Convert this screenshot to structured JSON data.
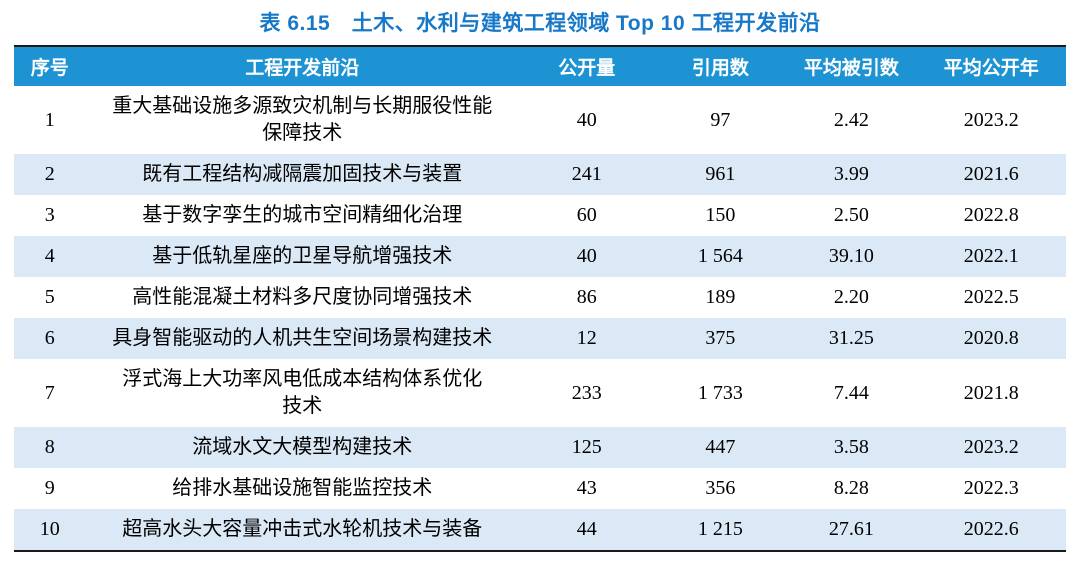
{
  "title": "表 6.15　土木、水利与建筑工程领域 Top 10 工程开发前沿",
  "colors": {
    "header_bg": "#1e93d3",
    "row_alt_bg": "#dbe9f6",
    "title_color": "#1878c8",
    "rule_color": "#1a1a1a"
  },
  "table": {
    "columns": [
      "序号",
      "工程开发前沿",
      "公开量",
      "引用数",
      "平均被引数",
      "平均公开年"
    ],
    "rows": [
      {
        "no": "1",
        "frontier": "重大基础设施多源致灾机制与长期服役性能\n保障技术",
        "publications": "40",
        "citations": "97",
        "avg_cited": "2.42",
        "avg_year": "2023.2"
      },
      {
        "no": "2",
        "frontier": "既有工程结构减隔震加固技术与装置",
        "publications": "241",
        "citations": "961",
        "avg_cited": "3.99",
        "avg_year": "2021.6"
      },
      {
        "no": "3",
        "frontier": "基于数字孪生的城市空间精细化治理",
        "publications": "60",
        "citations": "150",
        "avg_cited": "2.50",
        "avg_year": "2022.8"
      },
      {
        "no": "4",
        "frontier": "基于低轨星座的卫星导航增强技术",
        "publications": "40",
        "citations": "1 564",
        "avg_cited": "39.10",
        "avg_year": "2022.1"
      },
      {
        "no": "5",
        "frontier": "高性能混凝土材料多尺度协同增强技术",
        "publications": "86",
        "citations": "189",
        "avg_cited": "2.20",
        "avg_year": "2022.5"
      },
      {
        "no": "6",
        "frontier": "具身智能驱动的人机共生空间场景构建技术",
        "publications": "12",
        "citations": "375",
        "avg_cited": "31.25",
        "avg_year": "2020.8"
      },
      {
        "no": "7",
        "frontier": "浮式海上大功率风电低成本结构体系优化\n技术",
        "publications": "233",
        "citations": "1 733",
        "avg_cited": "7.44",
        "avg_year": "2021.8"
      },
      {
        "no": "8",
        "frontier": "流域水文大模型构建技术",
        "publications": "125",
        "citations": "447",
        "avg_cited": "3.58",
        "avg_year": "2023.2"
      },
      {
        "no": "9",
        "frontier": "给排水基础设施智能监控技术",
        "publications": "43",
        "citations": "356",
        "avg_cited": "8.28",
        "avg_year": "2022.3"
      },
      {
        "no": "10",
        "frontier": "超高水头大容量冲击式水轮机技术与装备",
        "publications": "44",
        "citations": "1 215",
        "avg_cited": "27.61",
        "avg_year": "2022.6"
      }
    ]
  }
}
